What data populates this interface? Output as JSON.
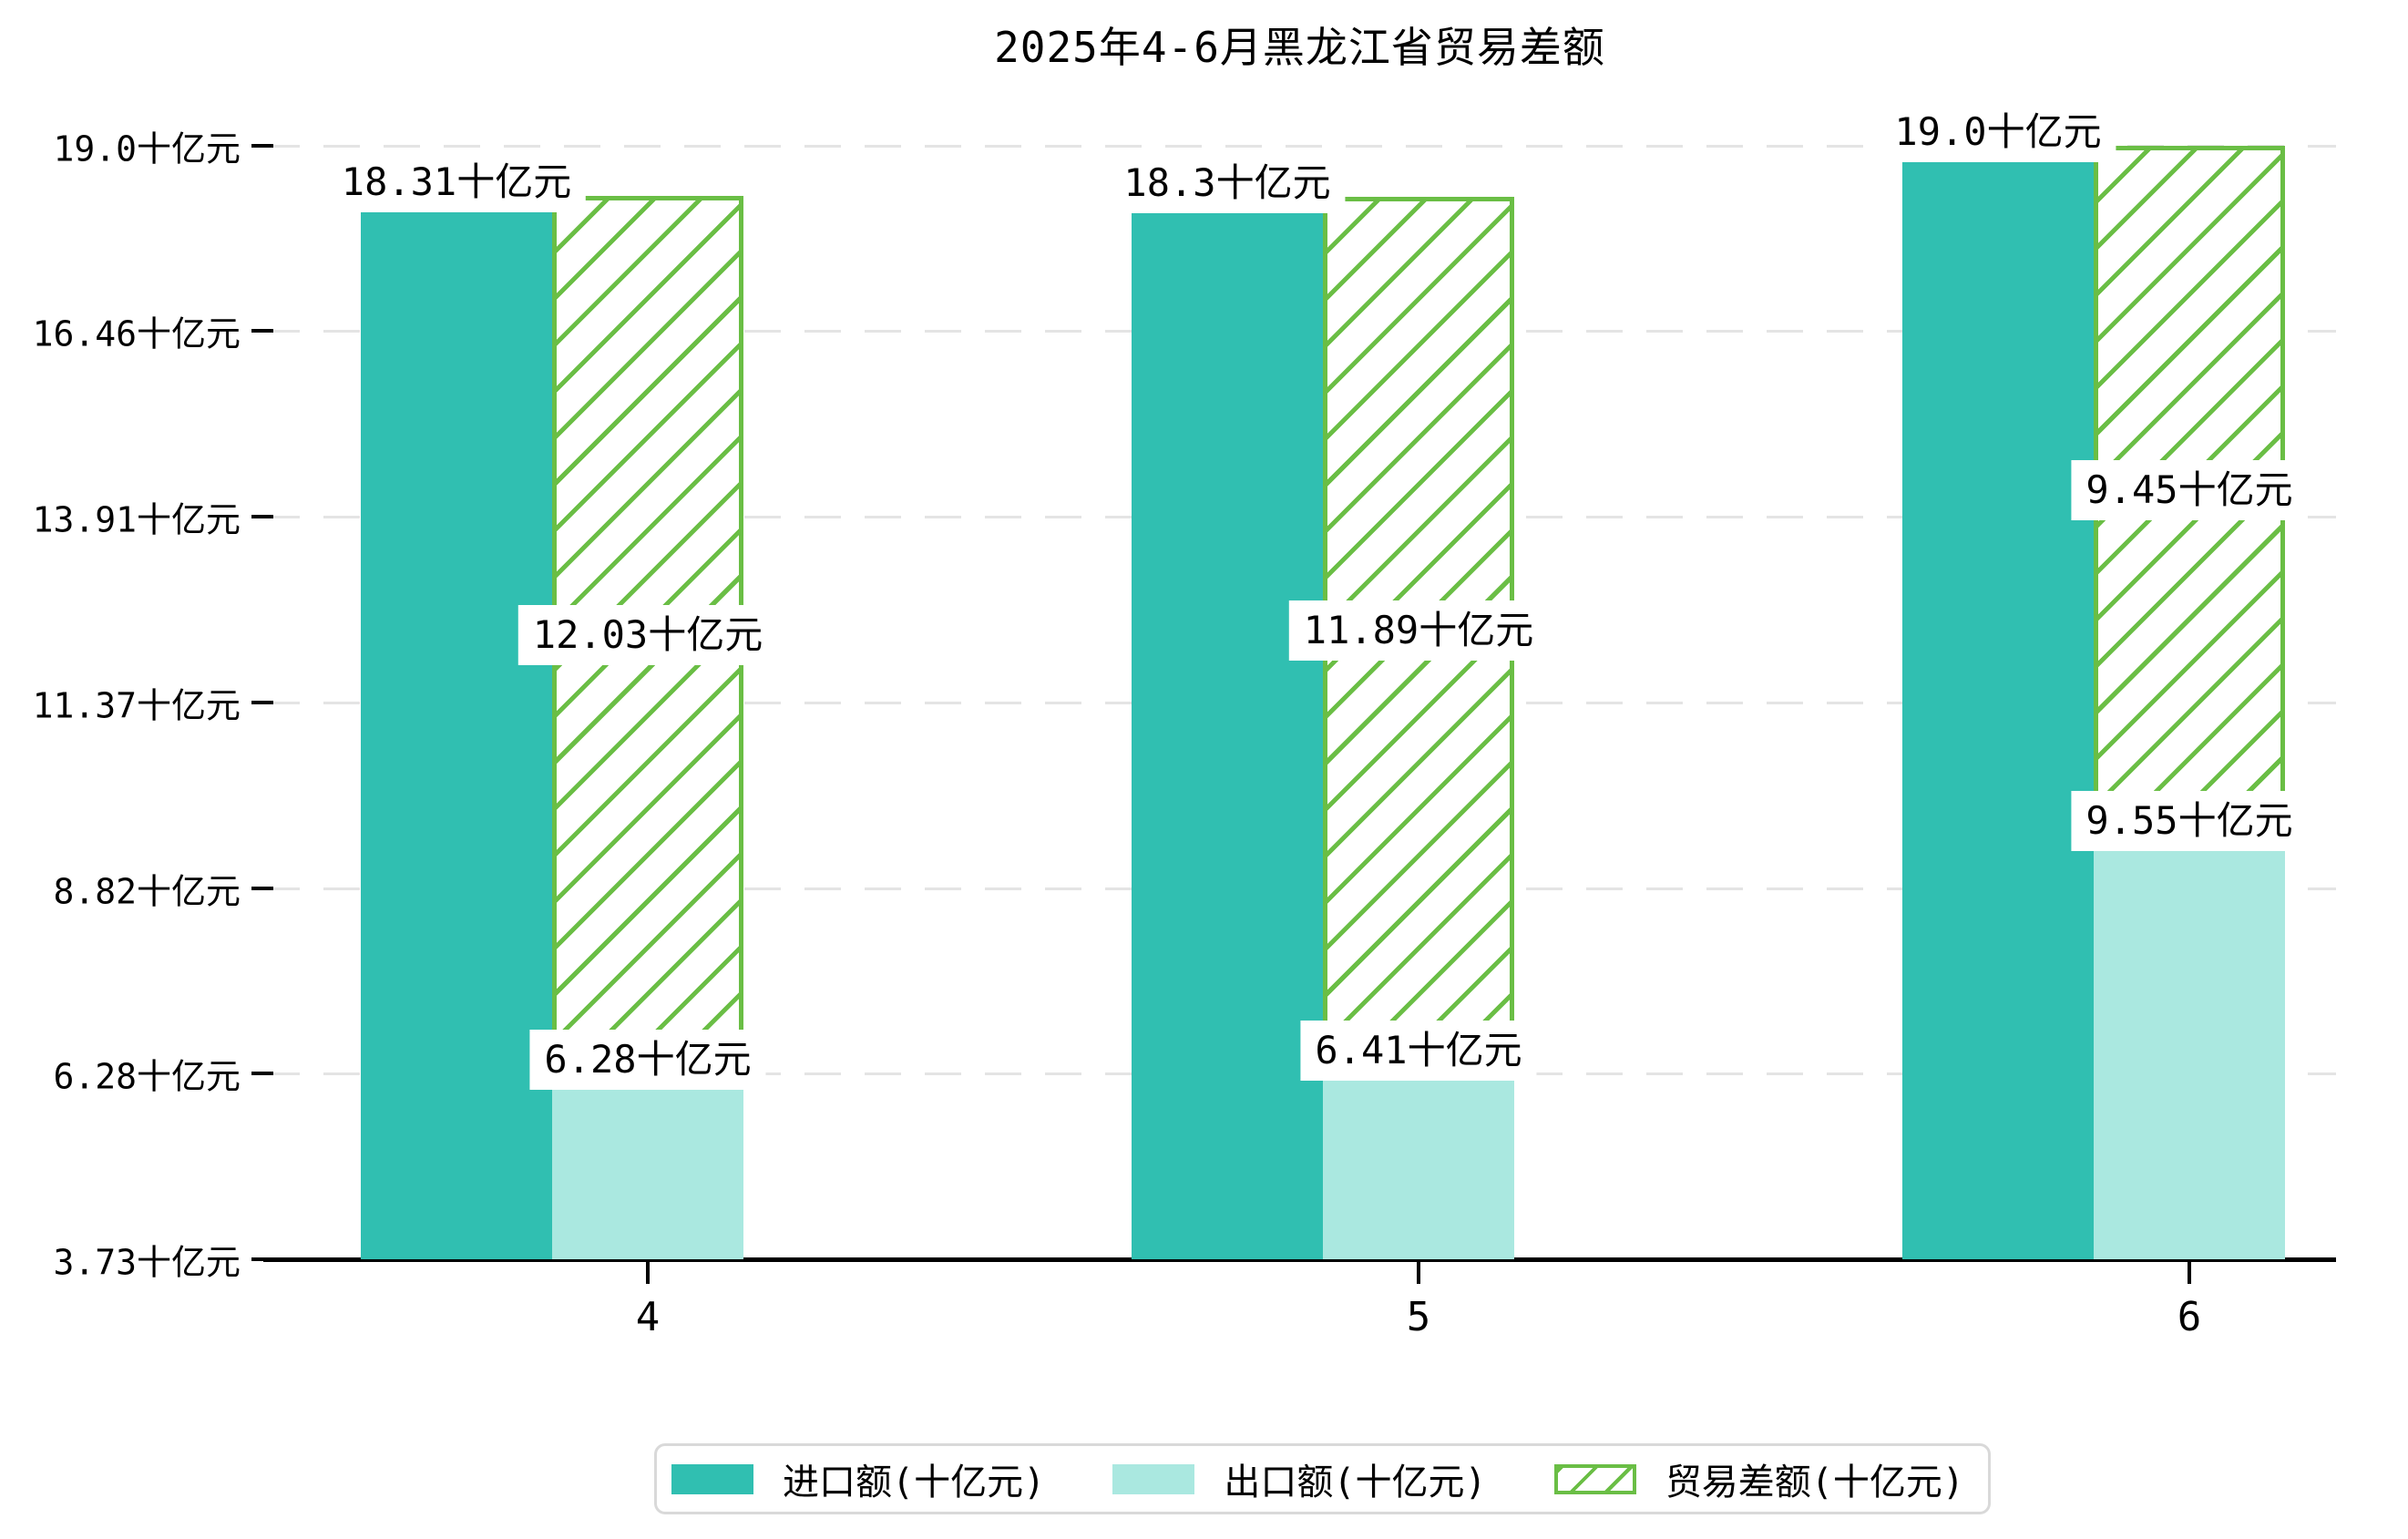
{
  "title": "2025年4-6月黑龙江省贸易差额",
  "unit": "十亿元",
  "colors": {
    "import_bar": "#30bfb1",
    "export_bar": "#aae8e0",
    "balance_hatch": "#6abe45",
    "axis": "#000000",
    "gridline": "#e4e4e4",
    "legend_border": "#d9d9d9",
    "label_text": "#000000",
    "label_background": "#ffffff"
  },
  "chart_data": {
    "type": "bar",
    "title": "2025年4-6月黑龙江省贸易差额",
    "xlabel": "",
    "ylabel": "",
    "categories": [
      "4",
      "5",
      "6"
    ],
    "series": [
      {
        "name": "进口额(十亿元)",
        "role": "import",
        "values": [
          18.31,
          18.3,
          19.0
        ],
        "labels": [
          "18.31十亿元",
          "18.3十亿元",
          "19.0十亿元"
        ],
        "color": "#30bfb1",
        "style": "solid"
      },
      {
        "name": "出口额(十亿元)",
        "role": "export",
        "values": [
          6.28,
          6.41,
          9.55
        ],
        "labels": [
          "6.28十亿元",
          "6.41十亿元",
          "9.55十亿元"
        ],
        "color": "#aae8e0",
        "style": "solid"
      },
      {
        "name": "贸易差额(十亿元)",
        "role": "trade-balance",
        "values": [
          12.03,
          11.89,
          9.45
        ],
        "labels": [
          "12.03十亿元",
          "11.89十亿元",
          "9.45十亿元"
        ],
        "color": "#6abe45",
        "style": "hatched",
        "note": "drawn stacked on top of export bar, spanning from export value up to import value"
      }
    ],
    "y_ticks": [
      {
        "value": 19.0,
        "label": "19.0十亿元"
      },
      {
        "value": 16.46,
        "label": "16.46十亿元"
      },
      {
        "value": 13.91,
        "label": "13.91十亿元"
      },
      {
        "value": 11.37,
        "label": "11.37十亿元"
      },
      {
        "value": 8.82,
        "label": "8.82十亿元"
      },
      {
        "value": 6.28,
        "label": "6.28十亿元"
      },
      {
        "value": 3.73,
        "label": "3.73十亿元"
      }
    ],
    "ylim": [
      3.73,
      19.0
    ],
    "grid": "horizontal dashed",
    "legend_position": "bottom"
  }
}
